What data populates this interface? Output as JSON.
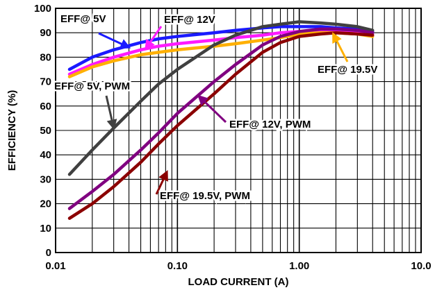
{
  "chart_data": {
    "type": "line",
    "xscale": "log",
    "xlim": [
      0.01,
      10.0
    ],
    "ylim": [
      0,
      100
    ],
    "xlabel": "LOAD CURRENT (A)",
    "ylabel": "EFFICIENCY (%)",
    "x_ticks": [
      "0.01",
      "0.10",
      "1.00",
      "10.0"
    ],
    "y_ticks": [
      "0",
      "10",
      "20",
      "30",
      "40",
      "50",
      "60",
      "70",
      "80",
      "90",
      "100"
    ],
    "grid": true,
    "series": [
      {
        "name": "EFF@ 5V",
        "color": "#1a1aff",
        "x": [
          0.013,
          0.02,
          0.03,
          0.05,
          0.07,
          0.1,
          0.2,
          0.3,
          0.5,
          0.7,
          1.0,
          1.5,
          2.0,
          3.0,
          4.0
        ],
        "y": [
          75,
          80,
          83,
          86,
          87.5,
          88.5,
          90,
          91,
          92,
          92.5,
          92.5,
          92.5,
          92,
          91.5,
          90.5
        ]
      },
      {
        "name": "EFF@ 12V",
        "color": "#ff1aff",
        "x": [
          0.013,
          0.02,
          0.03,
          0.05,
          0.07,
          0.1,
          0.2,
          0.3,
          0.5,
          0.7,
          1.0,
          1.5,
          2.0,
          3.0,
          4.0
        ],
        "y": [
          73,
          77,
          80,
          83,
          84.5,
          85.5,
          87,
          88,
          89,
          90,
          90.5,
          91,
          91,
          90.5,
          89.5
        ]
      },
      {
        "name": "EFF@ 19.5V",
        "color": "#ffb000",
        "x": [
          0.013,
          0.02,
          0.03,
          0.05,
          0.07,
          0.1,
          0.2,
          0.3,
          0.5,
          0.7,
          1.0,
          1.5,
          2.0,
          3.0,
          4.0
        ],
        "y": [
          72,
          76,
          78.5,
          81,
          82,
          83,
          84.5,
          85.5,
          87,
          88,
          89.5,
          90,
          90,
          89.5,
          88.5
        ]
      },
      {
        "name": "EFF@ 5V, PWM",
        "color": "#404040",
        "x": [
          0.013,
          0.02,
          0.03,
          0.05,
          0.07,
          0.1,
          0.2,
          0.3,
          0.5,
          0.7,
          1.0,
          1.5,
          2.0,
          3.0,
          4.0
        ],
        "y": [
          32,
          42,
          51,
          62,
          69,
          75,
          85,
          89,
          92.5,
          93.5,
          94.5,
          94,
          93.5,
          92.5,
          91
        ]
      },
      {
        "name": "EFF@ 12V, PWM",
        "color": "#800080",
        "x": [
          0.013,
          0.02,
          0.03,
          0.05,
          0.07,
          0.1,
          0.2,
          0.3,
          0.5,
          0.7,
          1.0,
          1.5,
          2.0,
          3.0,
          4.0
        ],
        "y": [
          18,
          25,
          32,
          42,
          49,
          57,
          70,
          77,
          85,
          88.5,
          90.5,
          91.5,
          91.5,
          91,
          90
        ]
      },
      {
        "name": "EFF@ 19.5V, PWM",
        "color": "#8b0000",
        "x": [
          0.013,
          0.02,
          0.03,
          0.05,
          0.07,
          0.1,
          0.2,
          0.3,
          0.5,
          0.7,
          1.0,
          1.5,
          2.0,
          3.0,
          4.0
        ],
        "y": [
          14,
          20,
          27,
          37,
          44.5,
          52,
          65,
          73,
          82,
          86,
          88.5,
          89.5,
          90,
          89.5,
          89
        ]
      }
    ],
    "annotations": [
      {
        "text": "EFF@ 5V",
        "series": "EFF@ 5V",
        "arrow_color": "#1a1aff",
        "x": 0.04,
        "y": 84
      },
      {
        "text": "EFF@ 12V",
        "series": "EFF@ 12V",
        "arrow_color": "#ff1aff",
        "x": 0.055,
        "y": 83.5
      },
      {
        "text": "EFF@ 19.5V",
        "series": "EFF@ 19.5V",
        "arrow_color": "#ffb000",
        "x": 1.9,
        "y": 89.5
      },
      {
        "text": "EFF@ 5V, PWM",
        "series": "EFF@ 5V, PWM",
        "arrow_color": "#404040",
        "x": 0.03,
        "y": 51
      },
      {
        "text": "EFF@ 12V, PWM",
        "series": "EFF@ 12V, PWM",
        "arrow_color": "#800080",
        "x": 0.15,
        "y": 64
      },
      {
        "text": "EFF@ 19.5V, PWM",
        "series": "EFF@ 19.5V, PWM",
        "arrow_color": "#8b0000",
        "x": 0.082,
        "y": 33
      }
    ]
  }
}
